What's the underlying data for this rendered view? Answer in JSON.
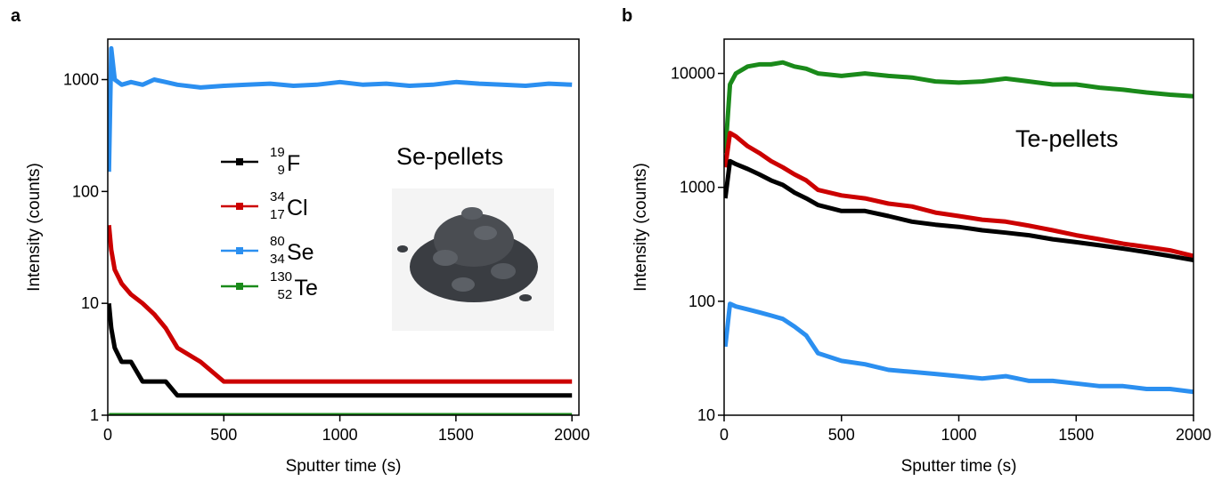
{
  "chart_data": [
    {
      "type": "line",
      "panel_label": "a",
      "x_label": "Sputter time (s)",
      "y_label": "Intensity (counts)",
      "annotation": "Se-pellets",
      "log_y": true,
      "legend": "center",
      "xlim": [
        0,
        2030
      ],
      "ylim": [
        1,
        2300
      ],
      "xticks": [
        0,
        500,
        1000,
        1500,
        2000
      ],
      "yticks": [
        1,
        10,
        100,
        1000
      ],
      "x": [
        5,
        15,
        30,
        60,
        100,
        150,
        200,
        250,
        300,
        400,
        500,
        600,
        700,
        800,
        900,
        1000,
        1100,
        1200,
        1300,
        1400,
        1500,
        1600,
        1700,
        1800,
        1900,
        2000
      ],
      "series": [
        {
          "name": "F",
          "mass_number": "19",
          "atomic_number": "9",
          "color": "#000000",
          "values": [
            10,
            6,
            4,
            3,
            3,
            2,
            2,
            2,
            1.5,
            1.5,
            1.5,
            1.5,
            1.5,
            1.5,
            1.5,
            1.5,
            1.5,
            1.5,
            1.5,
            1.5,
            1.5,
            1.5,
            1.5,
            1.5,
            1.5,
            1.5
          ]
        },
        {
          "name": "Cl",
          "mass_number": "34",
          "atomic_number": "17",
          "color": "#cc0000",
          "values": [
            50,
            30,
            20,
            15,
            12,
            10,
            8,
            6,
            4,
            3,
            2,
            2,
            2,
            2,
            2,
            2,
            2,
            2,
            2,
            2,
            2,
            2,
            2,
            2,
            2,
            2
          ]
        },
        {
          "name": "Se",
          "mass_number": "80",
          "atomic_number": "34",
          "color": "#2b8ff0",
          "values": [
            150,
            1900,
            1000,
            900,
            950,
            900,
            1000,
            950,
            900,
            850,
            880,
            900,
            920,
            880,
            900,
            950,
            900,
            920,
            880,
            900,
            950,
            920,
            900,
            880,
            920,
            900
          ]
        },
        {
          "name": "Te",
          "mass_number": "130",
          "atomic_number": "52",
          "color": "#1a8a1a",
          "values": [
            1,
            1,
            1,
            1,
            1,
            1,
            1,
            1,
            1,
            1,
            1,
            1,
            1,
            1,
            1,
            1,
            1,
            1,
            1,
            1,
            1,
            1,
            1,
            1,
            1,
            1
          ]
        }
      ]
    },
    {
      "type": "line",
      "panel_label": "b",
      "x_label": "Sputter time (s)",
      "y_label": "Intensity (counts)",
      "annotation": "Te-pellets",
      "log_y": true,
      "xlim": [
        0,
        2000
      ],
      "ylim": [
        10,
        20000
      ],
      "xticks": [
        0,
        500,
        1000,
        1500,
        2000
      ],
      "yticks": [
        10,
        100,
        1000,
        10000
      ],
      "x": [
        5,
        25,
        50,
        100,
        150,
        200,
        250,
        300,
        350,
        400,
        500,
        600,
        700,
        800,
        900,
        1000,
        1100,
        1200,
        1300,
        1400,
        1500,
        1600,
        1700,
        1800,
        1900,
        2000
      ],
      "series": [
        {
          "color": "#1a8a1a",
          "values": [
            2000,
            8000,
            10000,
            11500,
            12000,
            12000,
            12500,
            11500,
            11000,
            10000,
            9500,
            10000,
            9500,
            9200,
            8500,
            8300,
            8500,
            9000,
            8500,
            8000,
            8000,
            7500,
            7200,
            6800,
            6500,
            6300
          ]
        },
        {
          "color": "#cc0000",
          "values": [
            1500,
            3000,
            2800,
            2300,
            2000,
            1700,
            1500,
            1300,
            1150,
            950,
            850,
            800,
            720,
            680,
            600,
            560,
            520,
            500,
            460,
            420,
            380,
            350,
            320,
            300,
            280,
            250
          ]
        },
        {
          "color": "#000000",
          "values": [
            800,
            1700,
            1600,
            1450,
            1300,
            1150,
            1050,
            900,
            800,
            700,
            620,
            620,
            560,
            500,
            470,
            450,
            420,
            400,
            380,
            350,
            330,
            310,
            290,
            270,
            250,
            230
          ]
        },
        {
          "color": "#2b8ff0",
          "values": [
            40,
            95,
            90,
            85,
            80,
            75,
            70,
            60,
            50,
            35,
            30,
            28,
            25,
            24,
            23,
            22,
            21,
            22,
            20,
            20,
            19,
            18,
            18,
            17,
            17,
            16
          ]
        }
      ]
    }
  ]
}
